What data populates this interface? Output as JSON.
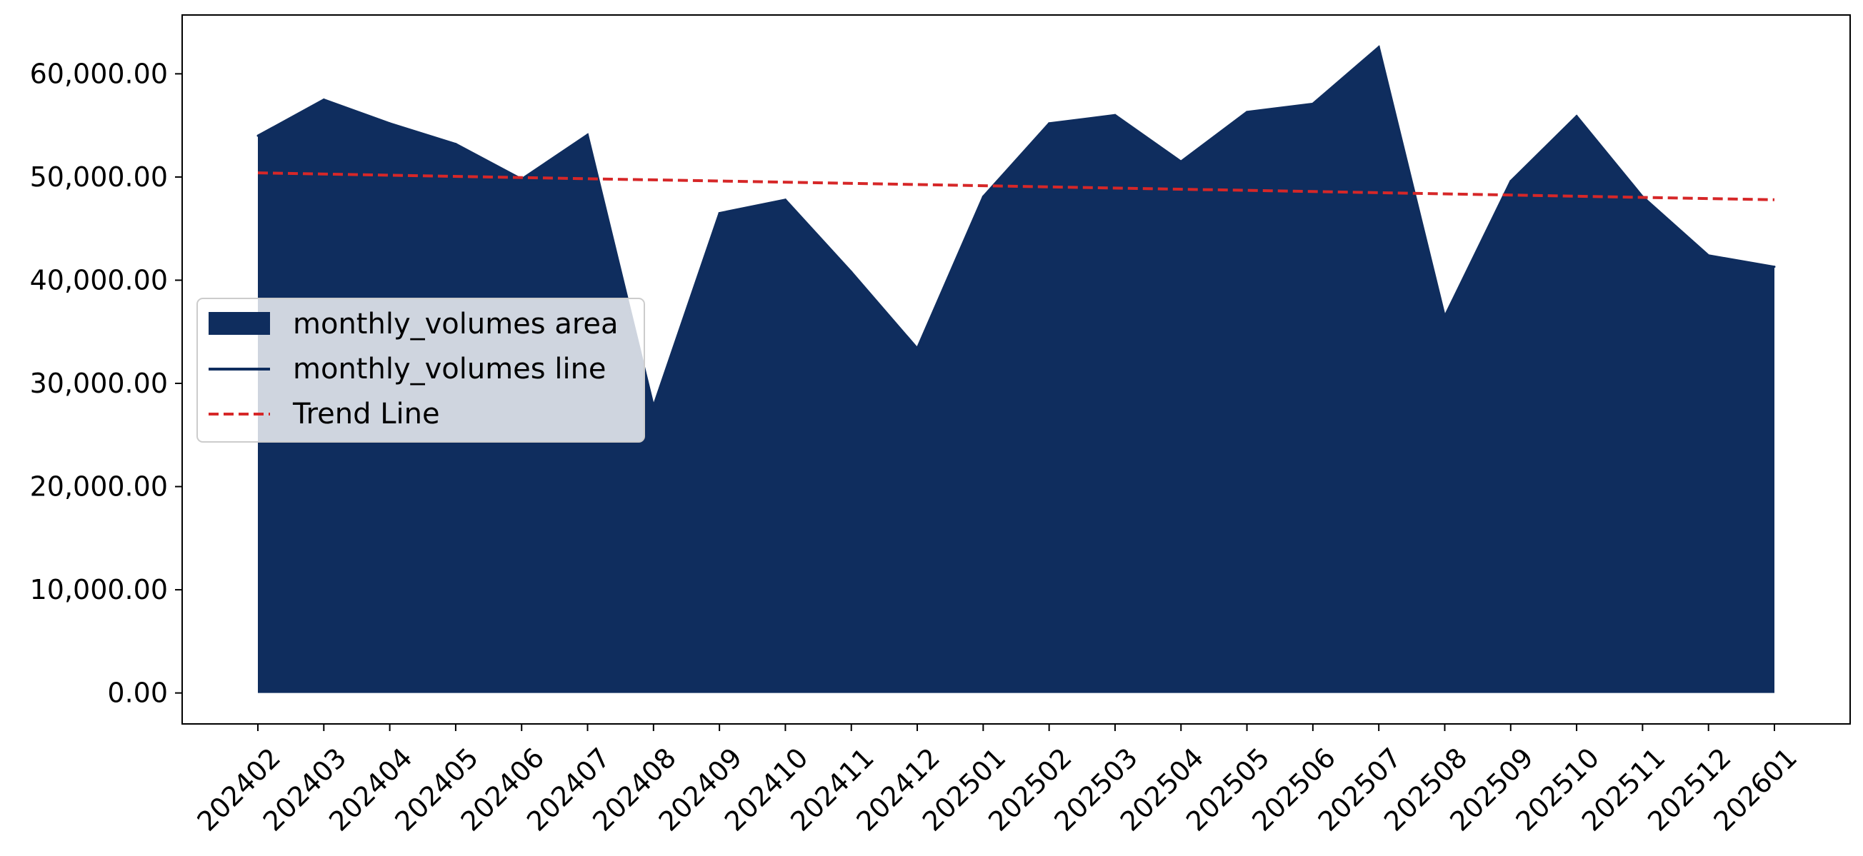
{
  "chart_data": {
    "type": "area",
    "categories": [
      "202402",
      "202403",
      "202404",
      "202405",
      "202406",
      "202407",
      "202408",
      "202409",
      "202410",
      "202411",
      "202412",
      "202501",
      "202502",
      "202503",
      "202504",
      "202505",
      "202506",
      "202507",
      "202508",
      "202509",
      "202510",
      "202511",
      "202512",
      "202601"
    ],
    "series": [
      {
        "name": "monthly_volumes area",
        "kind": "area",
        "color": "#0f2d5e",
        "values": [
          54000,
          57500,
          55200,
          53200,
          49800,
          54100,
          27800,
          46500,
          47800,
          40800,
          33400,
          48100,
          55200,
          56000,
          51500,
          56300,
          57100,
          62600,
          36500,
          49600,
          55900,
          48100,
          42400,
          41300
        ]
      },
      {
        "name": "monthly_volumes line",
        "kind": "line",
        "color": "#0f2d5e",
        "values": [
          54000,
          57500,
          55200,
          53200,
          49800,
          54100,
          27800,
          46500,
          47800,
          40800,
          33400,
          48100,
          55200,
          56000,
          51500,
          56300,
          57100,
          62600,
          36500,
          49600,
          55900,
          48100,
          42400,
          41300
        ]
      },
      {
        "name": "Trend Line",
        "kind": "trend",
        "color": "#d62728",
        "start": 50400,
        "end": 47800
      }
    ],
    "yticks": [
      0,
      10000,
      20000,
      30000,
      40000,
      50000,
      60000
    ],
    "ytick_labels": [
      "0.00",
      "10,000.00",
      "20,000.00",
      "30,000.00",
      "40,000.00",
      "50,000.00",
      "60,000.00"
    ],
    "ylim": [
      -3000,
      65700
    ],
    "xlabel": "",
    "ylabel": "",
    "title": "",
    "legend_position": "center-left",
    "grid": false
  }
}
